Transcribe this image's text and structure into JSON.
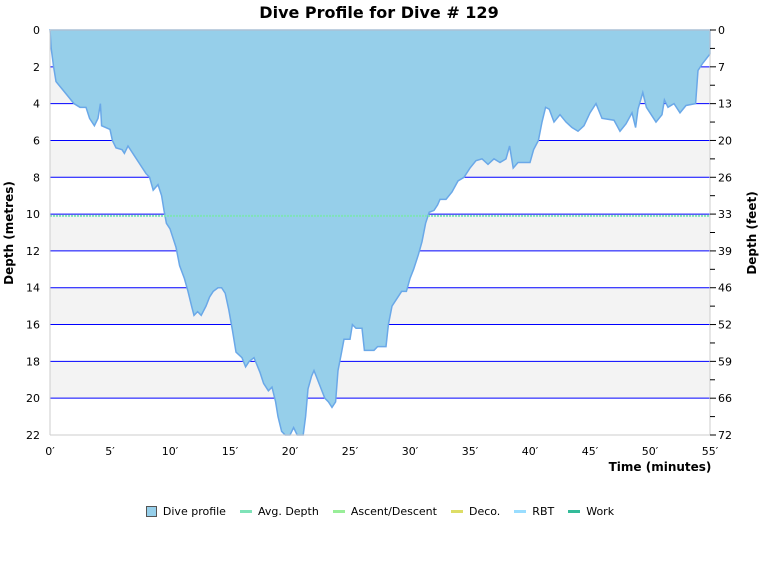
{
  "chart_data": {
    "type": "area",
    "title": "Dive Profile for Dive # 129",
    "xlabel": "Time (minutes)",
    "ylabel": "Depth (metres)",
    "y2label": "Depth (feet)",
    "xlim": [
      0,
      55
    ],
    "ylim": [
      0,
      22
    ],
    "y_inverted": true,
    "grid": true,
    "legend": "bottom",
    "x_ticks": [
      "0′",
      "5′",
      "10′",
      "15′",
      "20′",
      "25′",
      "30′",
      "35′",
      "40′",
      "45′",
      "50′",
      "55′"
    ],
    "y_ticks": [
      "0",
      "2",
      "4",
      "6",
      "8",
      "10",
      "12",
      "14",
      "16",
      "18",
      "20",
      "22"
    ],
    "y2_ticks": [
      "0",
      "7",
      "13",
      "20",
      "26",
      "33",
      "39",
      "46",
      "52",
      "59",
      "66",
      "72"
    ],
    "avg_depth": 10.1,
    "colors": {
      "profile_fill": "#96cfea",
      "profile_line": "#6aa8e8",
      "grid": "#0000ff",
      "band": "#f3f3f3",
      "avg": "#7fe3b8",
      "ascent": "#99ee99",
      "deco": "#dddd66",
      "rbt": "#99ddff",
      "work": "#33bb99"
    },
    "series": [
      {
        "name": "Dive profile",
        "t": [
          0,
          0.1,
          0.3,
          0.5,
          1,
          1.5,
          2,
          2.5,
          3,
          3.3,
          3.7,
          4,
          4.2,
          4.3,
          5,
          5.2,
          5.5,
          6,
          6.2,
          6.5,
          7,
          7.5,
          8,
          8.3,
          8.6,
          9,
          9.3,
          9.5,
          9.7,
          10,
          10.2,
          10.5,
          10.8,
          11.2,
          11.5,
          11.8,
          12,
          12.3,
          12.6,
          13,
          13.3,
          13.6,
          14,
          14.3,
          14.6,
          14.9,
          15.2,
          15.5,
          16,
          16.3,
          16.6,
          17,
          17.5,
          17.8,
          18.2,
          18.5,
          18.8,
          19,
          19.3,
          19.6,
          20,
          20.3,
          20.6,
          21.1,
          21.3,
          21.5,
          21.8,
          22,
          22.3,
          22.6,
          22.9,
          23.2,
          23.5,
          23.8,
          24,
          24.3,
          24.5,
          25,
          25.2,
          25.5,
          26,
          26.2,
          27,
          27.3,
          28,
          28.2,
          28.5,
          29,
          29.3,
          29.7,
          30,
          30.3,
          30.7,
          31,
          31.3,
          31.6,
          32,
          32.3,
          32.5,
          33,
          33.5,
          34,
          34.5,
          35,
          35.5,
          36,
          36.5,
          37,
          37.5,
          38,
          38.3,
          38.6,
          39,
          40,
          40.3,
          40.7,
          41,
          41.3,
          41.6,
          42,
          42.5,
          43,
          43.5,
          44,
          44.5,
          45,
          45.5,
          46,
          47,
          47.5,
          48,
          48.5,
          48.8,
          49,
          49.4,
          49.7,
          50,
          50.5,
          51,
          51.2,
          51.5,
          52,
          52.5,
          53,
          53.8,
          54,
          54.4,
          55,
          55
        ],
        "depth": [
          0,
          1,
          2,
          2.8,
          3.2,
          3.6,
          4,
          4.2,
          4.2,
          4.8,
          5.2,
          4.8,
          4,
          5.2,
          5.4,
          6,
          6.4,
          6.5,
          6.7,
          6.3,
          6.8,
          7.3,
          7.8,
          8,
          8.7,
          8.4,
          9,
          9.8,
          10.5,
          10.8,
          11.2,
          11.8,
          12.8,
          13.5,
          14.2,
          15,
          15.5,
          15.3,
          15.5,
          15,
          14.5,
          14.2,
          14,
          14,
          14.3,
          15.2,
          16.3,
          17.5,
          17.8,
          18.3,
          18,
          17.8,
          18.6,
          19.2,
          19.6,
          19.4,
          20.2,
          21,
          21.8,
          22,
          22,
          21.6,
          22,
          22,
          21,
          19.5,
          18.8,
          18.5,
          19,
          19.5,
          20,
          20.2,
          20.5,
          20.2,
          18.5,
          17.5,
          16.8,
          16.8,
          16,
          16.2,
          16.2,
          17.4,
          17.4,
          17.2,
          17.2,
          16,
          15,
          14.5,
          14.2,
          14.2,
          13.5,
          13,
          12.2,
          11.5,
          10.5,
          9.9,
          9.8,
          9.5,
          9.2,
          9.2,
          8.8,
          8.2,
          8,
          7.5,
          7.1,
          7,
          7.3,
          7,
          7.2,
          7,
          6.3,
          7.5,
          7.2,
          7.2,
          6.5,
          6,
          5,
          4.2,
          4.3,
          5,
          4.6,
          5,
          5.3,
          5.5,
          5.2,
          4.5,
          4,
          4.8,
          4.9,
          5.5,
          5.1,
          4.5,
          5.3,
          4.3,
          3.4,
          4.2,
          4.5,
          5,
          4.6,
          3.8,
          4.2,
          4,
          4.5,
          4.1,
          4,
          2.2,
          1.8,
          1.3,
          0
        ]
      }
    ],
    "legend_items": [
      "Dive profile",
      "Avg. Depth",
      "Ascent/Descent",
      "Deco.",
      "RBT",
      "Work"
    ]
  }
}
